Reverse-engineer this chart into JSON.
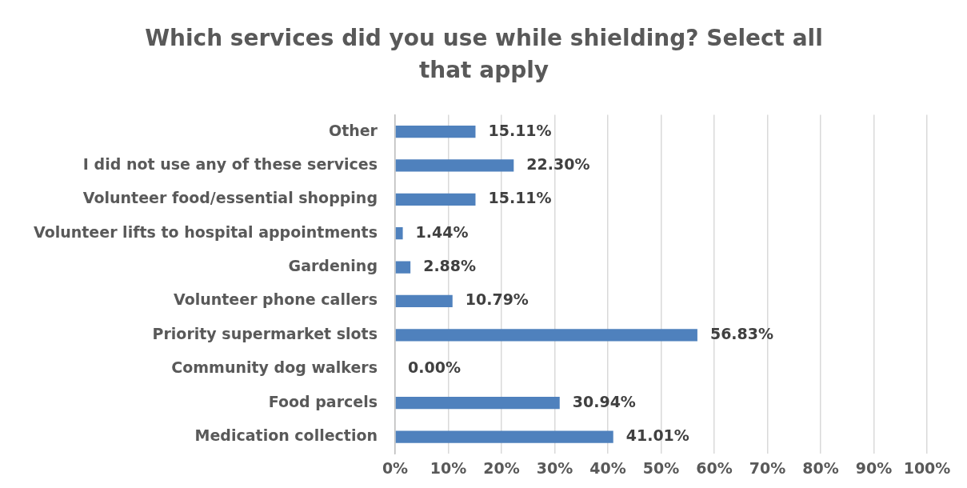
{
  "chart_data": {
    "type": "bar",
    "orientation": "horizontal",
    "title": "Which services did you use while shielding? Select all that apply",
    "categories": [
      "Other",
      "I did not use any of these services",
      "Volunteer food/essential shopping",
      "Volunteer lifts to hospital appointments",
      "Gardening",
      "Volunteer phone callers",
      "Priority supermarket slots",
      "Community dog walkers",
      "Food parcels",
      "Medication collection"
    ],
    "values": [
      15.11,
      22.3,
      15.11,
      1.44,
      2.88,
      10.79,
      56.83,
      0,
      30.94,
      41.01
    ],
    "value_labels": [
      "15.11%",
      "22.30%",
      "15.11%",
      "1.44%",
      "2.88%",
      "10.79%",
      "56.83%",
      "0.00%",
      "30.94%",
      "41.01%"
    ],
    "color": "#4f81bd",
    "xlim": [
      0,
      100
    ],
    "xticks": [
      {
        "value": 0,
        "label": "0%"
      },
      {
        "value": 10,
        "label": "10%"
      },
      {
        "value": 20,
        "label": "20%"
      },
      {
        "value": 30,
        "label": "30%"
      },
      {
        "value": 40,
        "label": "40%"
      },
      {
        "value": 50,
        "label": "50%"
      },
      {
        "value": 60,
        "label": "60%"
      },
      {
        "value": 70,
        "label": "70%"
      },
      {
        "value": 80,
        "label": "80%"
      },
      {
        "value": 90,
        "label": "90%"
      },
      {
        "value": 100,
        "label": "100%"
      }
    ],
    "grid": "x",
    "legend": false
  }
}
